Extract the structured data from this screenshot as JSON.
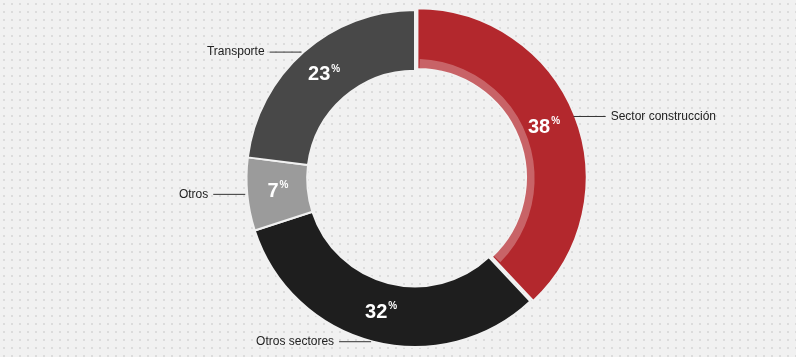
{
  "chart_data": {
    "type": "doughnut",
    "categories": [
      "Sector construcción",
      "Otros sectores",
      "Otros",
      "Transporte"
    ],
    "values": [
      38,
      32,
      7,
      23
    ],
    "value_labels": [
      "38%",
      "32%",
      "7%",
      "23%"
    ],
    "colors": [
      "#b3282d",
      "#1e1e1e",
      "#9b9b9b",
      "#484848"
    ],
    "data_labels": true
  }
}
